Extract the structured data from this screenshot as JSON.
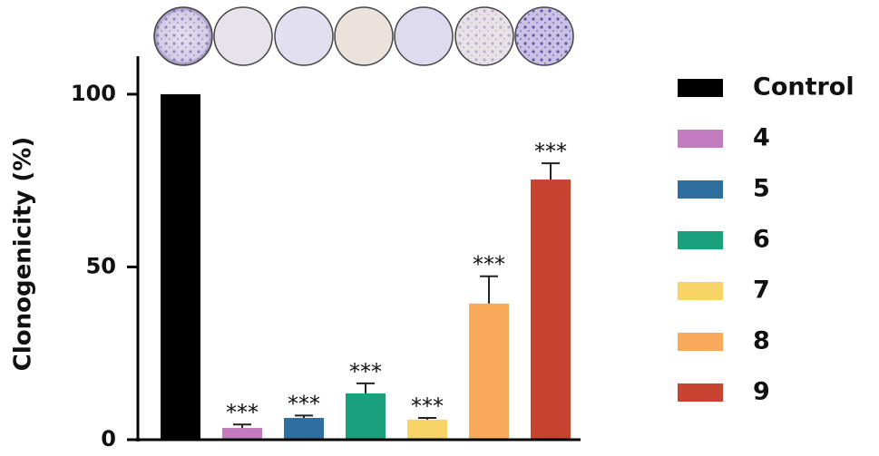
{
  "chart_data": {
    "type": "bar",
    "y_label": "Clonogenicity (%)",
    "categories": [
      "Control",
      "4",
      "5",
      "6",
      "7",
      "8",
      "9"
    ],
    "values": [
      100,
      3.4,
      6.3,
      13.4,
      5.8,
      39.4,
      75.3
    ],
    "errors": [
      0,
      1,
      0.7,
      2.9,
      0.5,
      7.9,
      4.7
    ],
    "colors": [
      "#000000",
      "#c37bbf",
      "#2e6fa0",
      "#1aa07b",
      "#f8d466",
      "#f8a95a",
      "#c7432f"
    ],
    "annotations": [
      null,
      "***",
      "***",
      "***",
      "***",
      "***",
      "***"
    ],
    "ylim": [
      0,
      111
    ],
    "yticks": [
      0,
      50,
      100
    ],
    "legend": "right"
  }
}
